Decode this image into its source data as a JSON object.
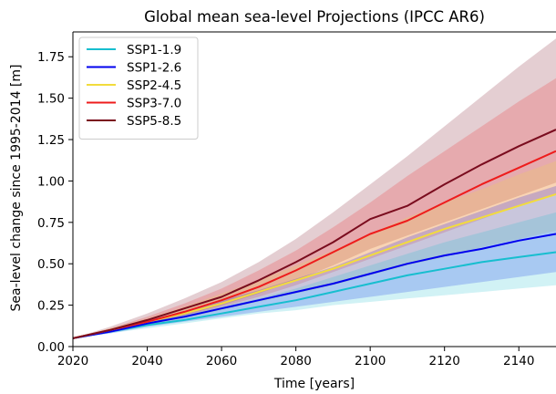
{
  "chart_data": {
    "type": "line",
    "title": "Global mean sea-level Projections (IPCC AR6)",
    "xlabel": "Time [years]",
    "ylabel": "Sea-level change since 1995-2014 [m]",
    "xlim": [
      2020,
      2150
    ],
    "ylim": [
      0.0,
      1.9
    ],
    "xticks": [
      2020,
      2040,
      2060,
      2080,
      2100,
      2120,
      2140
    ],
    "xtick_labels": [
      "2020",
      "2040",
      "2060",
      "2080",
      "2100",
      "2120",
      "2140"
    ],
    "yticks": [
      0.0,
      0.25,
      0.5,
      0.75,
      1.0,
      1.25,
      1.5,
      1.75
    ],
    "ytick_labels": [
      "0.00",
      "0.25",
      "0.50",
      "0.75",
      "1.00",
      "1.25",
      "1.50",
      "1.75"
    ],
    "grid": false,
    "legend_position": "top-left",
    "x": [
      2020,
      2030,
      2040,
      2050,
      2060,
      2070,
      2080,
      2090,
      2100,
      2110,
      2120,
      2130,
      2140,
      2150
    ],
    "series": [
      {
        "name": "SSP1-1.9",
        "color": "#17becf",
        "values": [
          0.05,
          0.09,
          0.13,
          0.16,
          0.2,
          0.24,
          0.28,
          0.33,
          0.38,
          0.43,
          0.47,
          0.51,
          0.54,
          0.57
        ],
        "lower": [
          0.05,
          0.08,
          0.11,
          0.14,
          0.17,
          0.2,
          0.22,
          0.25,
          0.27,
          0.29,
          0.31,
          0.33,
          0.35,
          0.37
        ],
        "upper": [
          0.05,
          0.1,
          0.15,
          0.19,
          0.24,
          0.29,
          0.35,
          0.42,
          0.49,
          0.56,
          0.63,
          0.69,
          0.75,
          0.81
        ]
      },
      {
        "name": "SSP1-2.6",
        "color": "#0000ee",
        "values": [
          0.05,
          0.09,
          0.14,
          0.18,
          0.23,
          0.28,
          0.33,
          0.38,
          0.44,
          0.5,
          0.55,
          0.59,
          0.64,
          0.68
        ],
        "lower": [
          0.05,
          0.08,
          0.12,
          0.15,
          0.18,
          0.21,
          0.24,
          0.27,
          0.3,
          0.33,
          0.36,
          0.39,
          0.42,
          0.45
        ],
        "upper": [
          0.05,
          0.1,
          0.16,
          0.21,
          0.28,
          0.34,
          0.41,
          0.48,
          0.57,
          0.66,
          0.74,
          0.82,
          0.9,
          0.97
        ]
      },
      {
        "name": "SSP2-4.5",
        "color": "#f2dc3c",
        "values": [
          0.05,
          0.1,
          0.15,
          0.2,
          0.26,
          0.33,
          0.4,
          0.47,
          0.55,
          0.63,
          0.71,
          0.78,
          0.85,
          0.92
        ],
        "lower": [
          0.05,
          0.09,
          0.13,
          0.17,
          0.22,
          0.27,
          0.32,
          0.37,
          0.43,
          0.49,
          0.54,
          0.6,
          0.65,
          0.7
        ],
        "upper": [
          0.05,
          0.11,
          0.17,
          0.24,
          0.32,
          0.4,
          0.49,
          0.58,
          0.68,
          0.78,
          0.87,
          0.95,
          1.04,
          1.12
        ]
      },
      {
        "name": "SSP3-7.0",
        "color": "#ee1c1c",
        "values": [
          0.05,
          0.1,
          0.15,
          0.21,
          0.28,
          0.36,
          0.46,
          0.57,
          0.68,
          0.76,
          0.87,
          0.98,
          1.08,
          1.18
        ],
        "lower": [
          0.05,
          0.09,
          0.13,
          0.18,
          0.24,
          0.3,
          0.37,
          0.45,
          0.53,
          0.61,
          0.69,
          0.77,
          0.85,
          0.92
        ],
        "upper": [
          0.05,
          0.11,
          0.18,
          0.26,
          0.35,
          0.46,
          0.58,
          0.72,
          0.87,
          1.03,
          1.18,
          1.33,
          1.48,
          1.62
        ]
      },
      {
        "name": "SSP5-8.5",
        "color": "#7a0c1e",
        "values": [
          0.05,
          0.1,
          0.16,
          0.23,
          0.3,
          0.4,
          0.51,
          0.63,
          0.77,
          0.85,
          0.98,
          1.1,
          1.21,
          1.31
        ],
        "lower": [
          0.05,
          0.09,
          0.14,
          0.19,
          0.25,
          0.32,
          0.4,
          0.49,
          0.59,
          0.67,
          0.75,
          0.83,
          0.91,
          0.99
        ],
        "upper": [
          0.05,
          0.12,
          0.2,
          0.29,
          0.39,
          0.51,
          0.65,
          0.81,
          0.98,
          1.15,
          1.33,
          1.51,
          1.69,
          1.86
        ]
      }
    ]
  }
}
